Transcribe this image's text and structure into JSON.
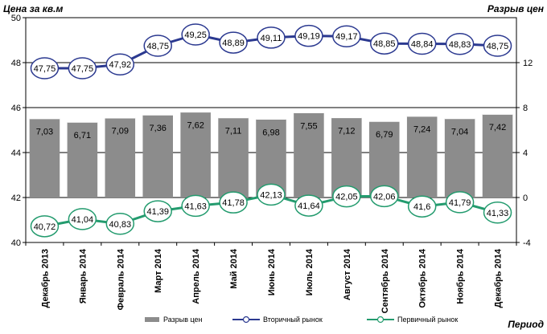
{
  "chart_data": {
    "type": "bar+line",
    "categories": [
      "Декабрь 2013",
      "Январь 2014",
      "Февраль 2014",
      "Март 2014",
      "Апрель 2014",
      "Май 2014",
      "Июнь 2014",
      "Июль 2014",
      "Август 2014",
      "Сентябрь 2014",
      "Октябрь 2014",
      "Ноябрь 2014",
      "Декабрь 2014"
    ],
    "left_axis": {
      "title": "Цена за кв.м",
      "min": 40,
      "max": 50,
      "ticks": [
        40,
        42,
        44,
        46,
        48,
        50
      ]
    },
    "right_axis": {
      "title": "Разрыв цен",
      "min": -4,
      "max": 16,
      "ticks": [
        -4,
        0,
        4,
        8,
        12
      ]
    },
    "x_axis_title": "Период",
    "series": [
      {
        "name": "Разрыв цен",
        "type": "bar",
        "axis": "right",
        "color": "#8c8c8c",
        "values": [
          7.03,
          6.71,
          7.09,
          7.36,
          7.62,
          7.11,
          6.98,
          7.55,
          7.12,
          6.79,
          7.24,
          7.04,
          7.42
        ],
        "labels": [
          "7,03",
          "6,71",
          "7,09",
          "7,36",
          "7,62",
          "7,11",
          "6,98",
          "7,55",
          "7,12",
          "6,79",
          "7,24",
          "7,04",
          "7,42"
        ]
      },
      {
        "name": "Вторичный рынок",
        "type": "line",
        "axis": "left",
        "color": "#2b3990",
        "values": [
          47.75,
          47.75,
          47.92,
          48.75,
          49.25,
          48.89,
          49.11,
          49.19,
          49.17,
          48.85,
          48.84,
          48.83,
          48.75
        ],
        "labels": [
          "47,75",
          "47,75",
          "47,92",
          "48,75",
          "49,25",
          "48,89",
          "49,11",
          "49,19",
          "49,17",
          "48,85",
          "48,84",
          "48,83",
          "48,75"
        ]
      },
      {
        "name": "Первичный рынок",
        "type": "line",
        "axis": "left",
        "color": "#239b6e",
        "values": [
          40.72,
          41.04,
          40.83,
          41.39,
          41.63,
          41.78,
          42.13,
          41.64,
          42.05,
          42.06,
          41.6,
          41.79,
          41.33
        ],
        "labels": [
          "40,72",
          "41,04",
          "40,83",
          "41,39",
          "41,63",
          "41,78",
          "42,13",
          "41,64",
          "42,05",
          "42,06",
          "41,6",
          "41,79",
          "41,33"
        ]
      }
    ],
    "grid": true,
    "legend_position": "bottom"
  }
}
